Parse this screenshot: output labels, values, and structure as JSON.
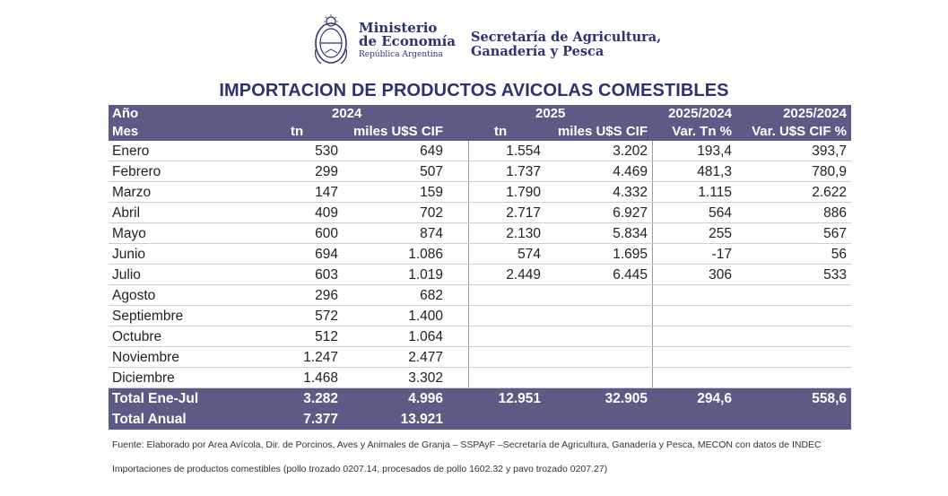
{
  "header": {
    "ministry_line1": "Ministerio",
    "ministry_line2": "de Economía",
    "ministry_line3": "República Argentina",
    "secretaria_line1": "Secretaría de Agricultura,",
    "secretaria_line2": "Ganadería y Pesca",
    "seal_icon": "argentina-coat-of-arms-icon"
  },
  "title": "IMPORTACION DE PRODUCTOS AVICOLAS COMESTIBLES",
  "table": {
    "head1": {
      "label": "Año",
      "y2024": "2024",
      "y2025": "2025",
      "var_tn": "2025/2024",
      "var_usd": "2025/2024"
    },
    "head2": {
      "label": "Mes",
      "tn_2024": "tn",
      "miles_2024": "miles U$S CIF",
      "tn_2025": "tn",
      "miles_2025": "miles U$S CIF",
      "var_tn": "Var. Tn %",
      "var_usd": "Var. U$S CIF %"
    },
    "rows": [
      {
        "mes": "Enero",
        "tn24": "530",
        "usd24": "649",
        "tn25": "1.554",
        "usd25": "3.202",
        "vtn": "193,4",
        "vusd": "393,7"
      },
      {
        "mes": "Febrero",
        "tn24": "299",
        "usd24": "507",
        "tn25": "1.737",
        "usd25": "4.469",
        "vtn": "481,3",
        "vusd": "780,9"
      },
      {
        "mes": "Marzo",
        "tn24": "147",
        "usd24": "159",
        "tn25": "1.790",
        "usd25": "4.332",
        "vtn": "1.115",
        "vusd": "2.622"
      },
      {
        "mes": "Abril",
        "tn24": "409",
        "usd24": "702",
        "tn25": "2.717",
        "usd25": "6.927",
        "vtn": "564",
        "vusd": "886"
      },
      {
        "mes": "Mayo",
        "tn24": "600",
        "usd24": "874",
        "tn25": "2.130",
        "usd25": "5.834",
        "vtn": "255",
        "vusd": "567"
      },
      {
        "mes": "Junio",
        "tn24": "694",
        "usd24": "1.086",
        "tn25": "574",
        "usd25": "1.695",
        "vtn": "-17",
        "vusd": "56"
      },
      {
        "mes": "Julio",
        "tn24": "603",
        "usd24": "1.019",
        "tn25": "2.449",
        "usd25": "6.445",
        "vtn": "306",
        "vusd": "533"
      },
      {
        "mes": "Agosto",
        "tn24": "296",
        "usd24": "682",
        "tn25": "",
        "usd25": "",
        "vtn": "",
        "vusd": ""
      },
      {
        "mes": "Septiembre",
        "tn24": "572",
        "usd24": "1.400",
        "tn25": "",
        "usd25": "",
        "vtn": "",
        "vusd": ""
      },
      {
        "mes": "Octubre",
        "tn24": "512",
        "usd24": "1.064",
        "tn25": "",
        "usd25": "",
        "vtn": "",
        "vusd": ""
      },
      {
        "mes": "Noviembre",
        "tn24": "1.247",
        "usd24": "2.477",
        "tn25": "",
        "usd25": "",
        "vtn": "",
        "vusd": ""
      },
      {
        "mes": "Diciembre",
        "tn24": "1.468",
        "usd24": "3.302",
        "tn25": "",
        "usd25": "",
        "vtn": "",
        "vusd": ""
      }
    ],
    "total_ene_jul": {
      "label": "Total Ene-Jul",
      "tn24": "3.282",
      "usd24": "4.996",
      "tn25": "12.951",
      "usd25": "32.905",
      "vtn": "294,6",
      "vusd": "558,6"
    },
    "total_anual": {
      "label": "Total Anual",
      "tn24": "7.377",
      "usd24": "13.921"
    }
  },
  "footnotes": {
    "source": "Fuente: Elaborado por Area Avícola, Dir. de Porcinos, Aves y Animales de Granja  – SSPAyF –Secretaría de Agricultura, Ganadería y Pesca, MECON con datos de INDEC",
    "note": "Importaciones de productos comestibles (pollo trozado 0207.14, procesados de pollo 1602.32 y pavo trozado 0207.27)"
  },
  "colors": {
    "header_bg": "#5b5b85",
    "title": "#2e3270"
  }
}
